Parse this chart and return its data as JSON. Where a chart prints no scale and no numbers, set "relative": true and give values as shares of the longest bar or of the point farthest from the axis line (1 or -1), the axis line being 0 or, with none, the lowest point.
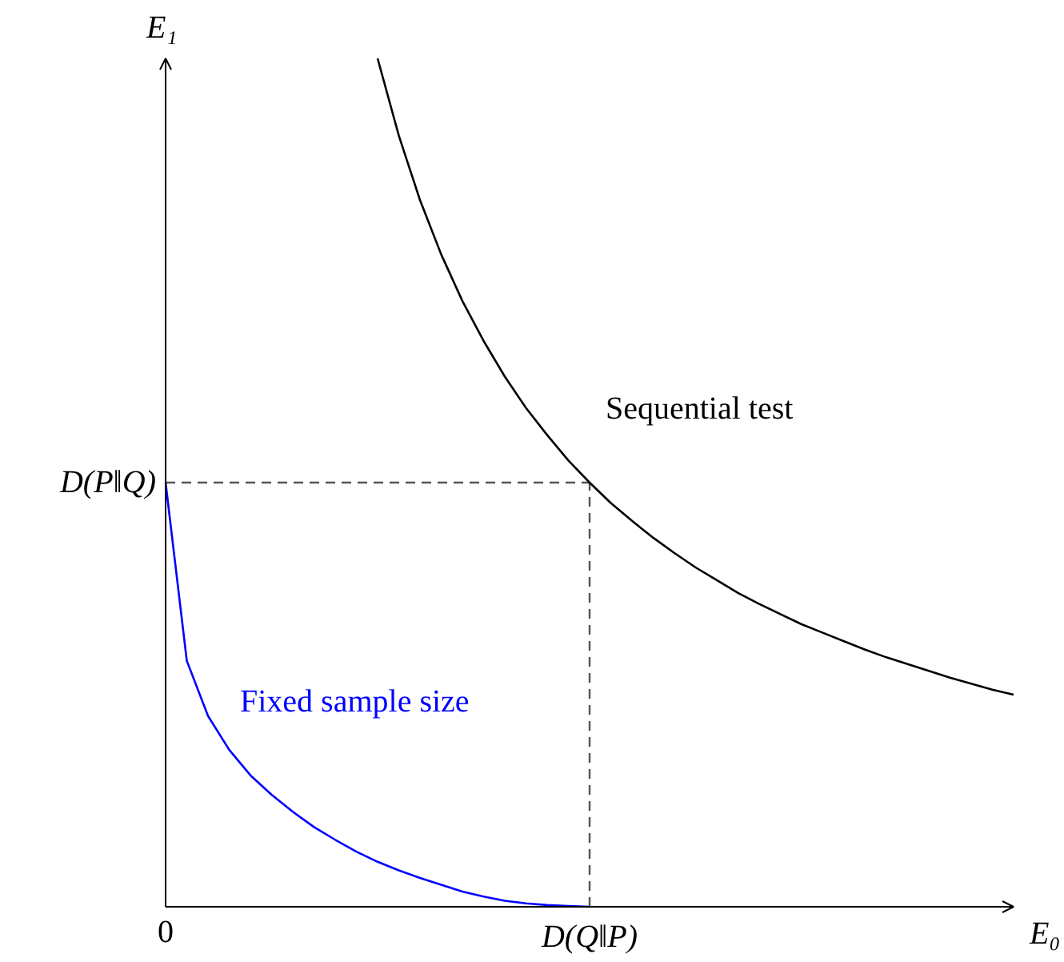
{
  "chart_data": {
    "type": "line",
    "relative": true,
    "xlabel": "E₀",
    "ylabel": "E₁",
    "categories": [
      "0",
      null,
      null,
      null,
      null,
      null,
      null,
      null,
      null,
      null,
      null,
      null,
      null,
      null,
      null,
      null,
      null,
      null,
      null,
      null,
      "D(Q‖P)",
      null,
      null,
      null,
      null,
      null,
      null,
      null,
      null,
      null,
      null,
      null,
      null,
      null,
      null,
      null,
      null,
      null,
      null,
      null,
      null
    ],
    "series": [
      {
        "name": "Sequential test",
        "color": "#000000",
        "values": [
          null,
          null,
          null,
          null,
          null,
          null,
          null,
          null,
          null,
          null,
          1.0,
          0.909,
          0.833,
          0.769,
          0.714,
          0.667,
          0.625,
          0.588,
          0.556,
          0.526,
          0.5,
          0.476,
          0.455,
          0.435,
          0.417,
          0.4,
          0.385,
          0.37,
          0.357,
          0.345,
          0.333,
          0.323,
          0.313,
          0.303,
          0.294,
          0.286,
          0.278,
          0.27,
          0.263,
          0.256,
          0.25
        ]
      },
      {
        "name": "Fixed sample size",
        "color": "#0000ff",
        "values": [
          0.5,
          0.29,
          0.225,
          0.185,
          0.155,
          0.132,
          0.112,
          0.094,
          0.079,
          0.065,
          0.053,
          0.043,
          0.034,
          0.026,
          0.018,
          0.012,
          0.007,
          0.004,
          0.002,
          0.001,
          0,
          null,
          null,
          null,
          null,
          null,
          null,
          null,
          null,
          null,
          null,
          null,
          null,
          null,
          null,
          null,
          null,
          null,
          null,
          null,
          null
        ]
      }
    ],
    "ref_lines": [
      {
        "axis": "y",
        "value": 0.5,
        "label": "D(P‖Q)",
        "color": "#555555",
        "line_style": "dashed"
      },
      {
        "axis": "x",
        "value": "D(Q‖P)",
        "color": "#555555",
        "line_style": "dashed"
      }
    ],
    "marker": "none",
    "line_style": "solid"
  }
}
